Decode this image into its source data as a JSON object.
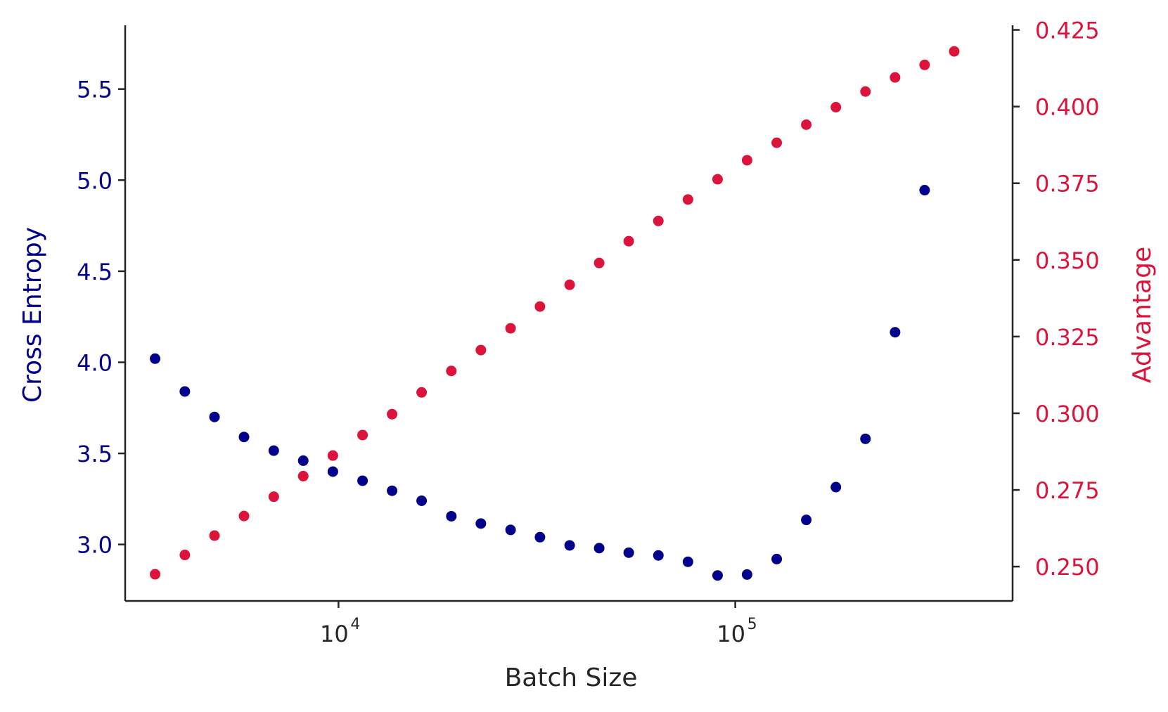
{
  "chart_data": {
    "type": "scatter",
    "xlabel": "Batch Size",
    "xscale": "log",
    "xlim": [
      2900,
      500000
    ],
    "xticks": [
      {
        "value": 10000,
        "base": "10",
        "exp": "4"
      },
      {
        "value": 100000,
        "base": "10",
        "exp": "5"
      }
    ],
    "left_axis": {
      "label": "Cross Entropy",
      "ylim": [
        2.69,
        5.85
      ],
      "ticks": [
        "3.0",
        "3.5",
        "4.0",
        "4.5",
        "5.0",
        "5.5"
      ],
      "color": "#00008b"
    },
    "right_axis": {
      "label": "Advantage",
      "ylim": [
        0.2388,
        0.4265
      ],
      "ticks": [
        "0.250",
        "0.275",
        "0.300",
        "0.325",
        "0.350",
        "0.375",
        "0.400",
        "0.425"
      ],
      "color": "#dc143c"
    },
    "series": [
      {
        "axis": "left",
        "color": "#00008b",
        "points": [
          [
            3450,
            4.02
          ],
          [
            4100,
            3.84
          ],
          [
            4870,
            3.7
          ],
          [
            5780,
            3.59
          ],
          [
            6870,
            3.515
          ],
          [
            8150,
            3.46
          ],
          [
            9680,
            3.4
          ],
          [
            11500,
            3.35
          ],
          [
            13650,
            3.295
          ],
          [
            16200,
            3.24
          ],
          [
            19250,
            3.155
          ],
          [
            22850,
            3.115
          ],
          [
            27150,
            3.08
          ],
          [
            32200,
            3.04
          ],
          [
            38250,
            2.995
          ],
          [
            45400,
            2.98
          ],
          [
            53900,
            2.955
          ],
          [
            64000,
            2.94
          ],
          [
            76000,
            2.905
          ],
          [
            90250,
            2.83
          ],
          [
            107100,
            2.835
          ],
          [
            127200,
            2.92
          ],
          [
            151000,
            3.135
          ],
          [
            179300,
            3.315
          ],
          [
            212900,
            3.58
          ],
          [
            252800,
            4.165
          ],
          [
            300100,
            4.945
          ]
        ]
      },
      {
        "axis": "right",
        "color": "#dc143c",
        "points": [
          [
            3450,
            0.2475
          ],
          [
            4100,
            0.2538
          ],
          [
            4870,
            0.2601
          ],
          [
            5780,
            0.2665
          ],
          [
            6870,
            0.2728
          ],
          [
            8150,
            0.2795
          ],
          [
            9680,
            0.2862
          ],
          [
            11500,
            0.2929
          ],
          [
            13650,
            0.2997
          ],
          [
            16200,
            0.3068
          ],
          [
            19250,
            0.3138
          ],
          [
            22850,
            0.3206
          ],
          [
            27150,
            0.3277
          ],
          [
            32200,
            0.3348
          ],
          [
            38250,
            0.3419
          ],
          [
            45400,
            0.349
          ],
          [
            53900,
            0.3561
          ],
          [
            64000,
            0.3627
          ],
          [
            76000,
            0.3697
          ],
          [
            90250,
            0.3763
          ],
          [
            107100,
            0.3825
          ],
          [
            127200,
            0.3882
          ],
          [
            151000,
            0.3941
          ],
          [
            179300,
            0.3998
          ],
          [
            212900,
            0.4049
          ],
          [
            252800,
            0.4095
          ],
          [
            300100,
            0.4136
          ],
          [
            356300,
            0.418
          ]
        ]
      }
    ]
  }
}
